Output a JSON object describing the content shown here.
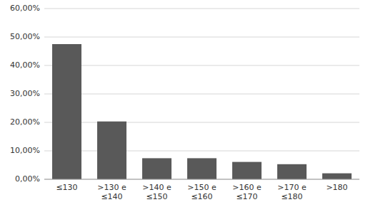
{
  "chart_data": {
    "type": "bar",
    "categories": [
      "≤130",
      ">130 e\n≤140",
      ">140 e\n≤150",
      ">150 e\n≤160",
      ">160 e\n≤170",
      ">170 e\n≤180",
      ">180"
    ],
    "values": [
      0.475,
      0.2032,
      0.074,
      0.074,
      0.061,
      0.053,
      0.021
    ],
    "color": "#595959",
    "ylim": [
      0,
      0.6
    ],
    "yticks": [
      {
        "value": 0.0,
        "label": "0,00%"
      },
      {
        "value": 0.1,
        "label": "10,00%"
      },
      {
        "value": 0.2,
        "label": "20,00%"
      },
      {
        "value": 0.3,
        "label": "30,00%"
      },
      {
        "value": 0.4,
        "label": "40,00%"
      },
      {
        "value": 0.5,
        "label": "50,00%"
      },
      {
        "value": 0.6,
        "label": "60,00%"
      }
    ],
    "grid": true
  }
}
